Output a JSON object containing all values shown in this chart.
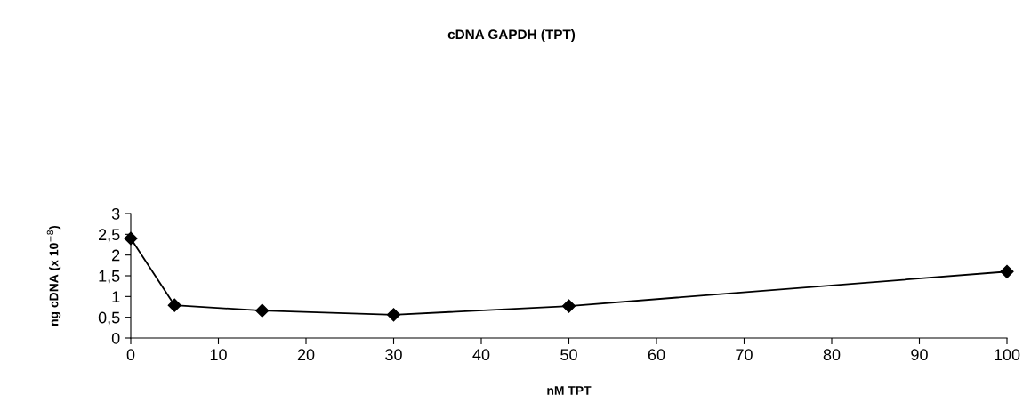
{
  "chart_data": {
    "type": "line",
    "title": "cDNA GAPDH (TPT)",
    "xlabel": "nM TPT",
    "ylabel": "ng cDNA (x 10$^{−8}$)",
    "x": [
      0,
      5,
      15,
      30,
      50,
      100
    ],
    "series": [
      {
        "color": "#000000",
        "values": [
          2.4,
          0.79,
          0.66,
          0.56,
          0.77,
          1.6
        ]
      }
    ],
    "xlim": [
      0,
      100
    ],
    "xticks": [
      0,
      10,
      20,
      30,
      40,
      50,
      60,
      70,
      80,
      90,
      100
    ],
    "ylim": [
      0,
      3
    ],
    "yticks": [
      0,
      {
        "value": 0.5,
        "label": "0,5"
      },
      1,
      {
        "value": 1.5,
        "label": "1,5"
      },
      2,
      {
        "value": 2.5,
        "label": "2,5"
      },
      3
    ],
    "grid": false,
    "legend": false,
    "marker": "diamond",
    "line_style": "solid"
  }
}
